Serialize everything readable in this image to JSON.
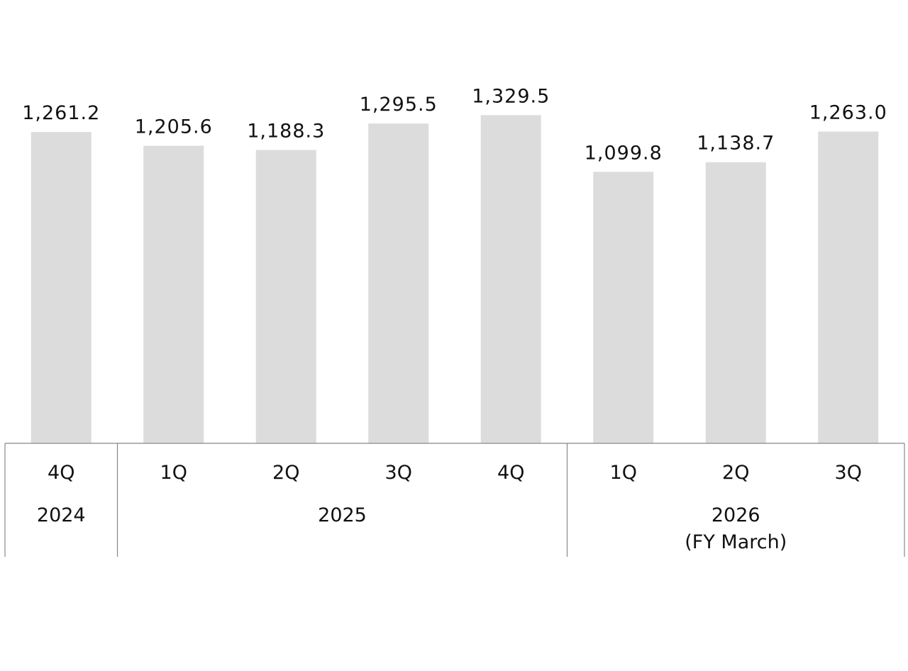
{
  "chart_data": {
    "type": "bar",
    "categories": [
      "4Q",
      "1Q",
      "2Q",
      "3Q",
      "4Q",
      "1Q",
      "2Q",
      "3Q"
    ],
    "category_groups": [
      "2024",
      "2025",
      null,
      null,
      null,
      "2026\n(FY March)",
      null,
      null
    ],
    "values": [
      1261.2,
      1205.6,
      1188.3,
      1295.5,
      1329.5,
      1099.8,
      1138.7,
      1263.0
    ],
    "value_labels": [
      "1,261.2",
      "1,205.6",
      "1,188.3",
      "1,295.5",
      "1,329.5",
      "1,099.8",
      "1,138.7",
      "1,263.0"
    ],
    "color": "#dcdcdc",
    "ylim": [
      0,
      1500
    ]
  }
}
